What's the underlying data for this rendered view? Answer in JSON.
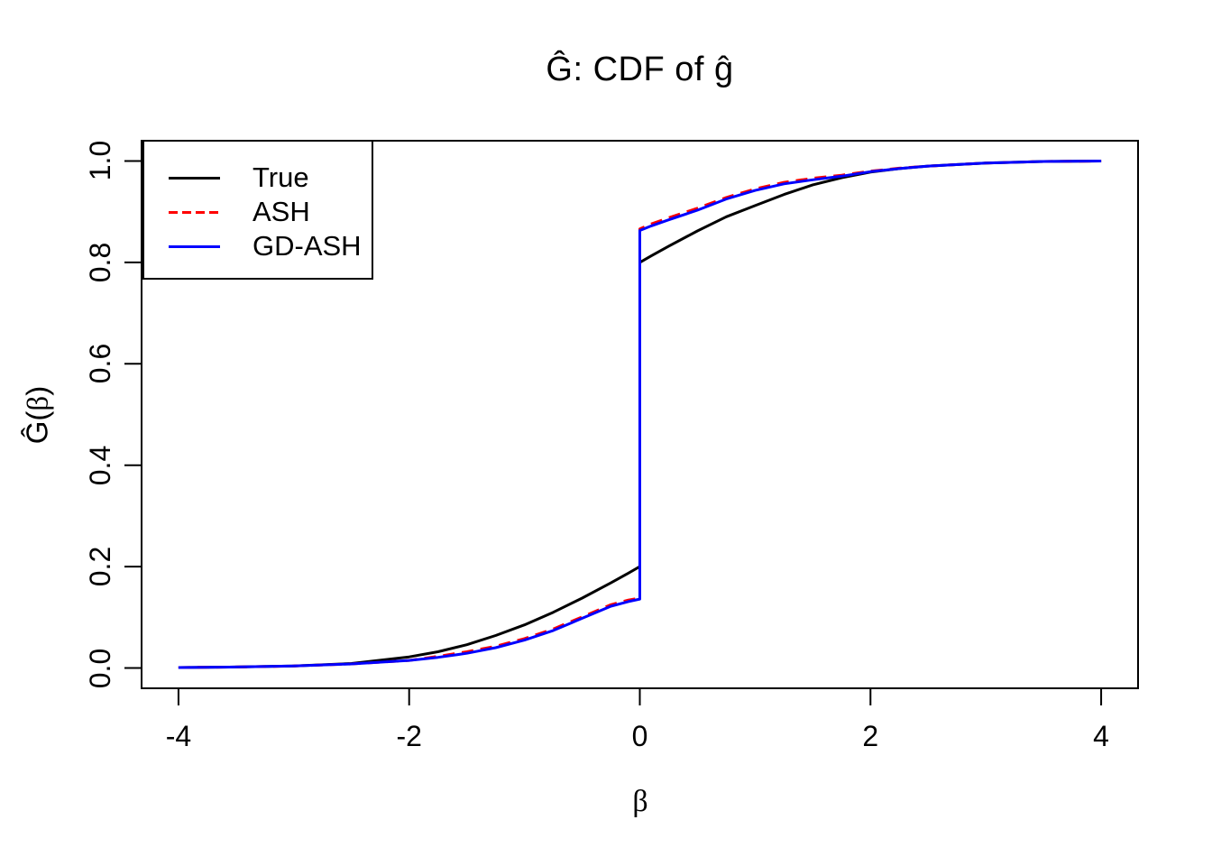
{
  "chart_data": {
    "type": "line",
    "title": "Ĝ: CDF of ĝ",
    "xlabel": "β",
    "ylabel": "Ĝ(β)",
    "xlim": [
      -4,
      4
    ],
    "ylim": [
      0,
      1
    ],
    "grid": false,
    "background": "#ffffff",
    "axis_color": "#000000",
    "x_ticks": {
      "values": [
        -4,
        -2,
        0,
        2,
        4
      ],
      "labels": [
        "-4",
        "-2",
        "0",
        "2",
        "4"
      ]
    },
    "y_ticks": {
      "values": [
        0.0,
        0.2,
        0.4,
        0.6,
        0.8,
        1.0
      ],
      "labels": [
        "0.0",
        "0.2",
        "0.4",
        "0.6",
        "0.8",
        "1.0"
      ]
    },
    "legend": {
      "position": "top-left",
      "entries": [
        {
          "label": "True",
          "color": "#000000",
          "dash": "solid"
        },
        {
          "label": "ASH",
          "color": "#FF0000",
          "dash": "dashed"
        },
        {
          "label": "GD-ASH",
          "color": "#0000FF",
          "dash": "solid"
        }
      ]
    },
    "series": [
      {
        "name": "True",
        "color": "#000000",
        "style": "solid",
        "x": [
          -4,
          -3.5,
          -3,
          -2.5,
          -2,
          -1.75,
          -1.5,
          -1.25,
          -1,
          -0.75,
          -0.5,
          -0.25,
          -0.1,
          0,
          0,
          0.1,
          0.25,
          0.5,
          0.75,
          1,
          1.25,
          1.5,
          1.75,
          2,
          2.25,
          2.5,
          3,
          3.5,
          4
        ],
        "y": [
          0.001,
          0.002,
          0.004,
          0.009,
          0.022,
          0.032,
          0.046,
          0.064,
          0.085,
          0.11,
          0.138,
          0.168,
          0.187,
          0.2,
          0.8,
          0.813,
          0.832,
          0.862,
          0.89,
          0.912,
          0.934,
          0.953,
          0.967,
          0.978,
          0.985,
          0.99,
          0.996,
          0.999,
          1.0
        ]
      },
      {
        "name": "ASH",
        "color": "#FF0000",
        "style": "dashed",
        "x": [
          -4,
          -3.5,
          -3,
          -2.5,
          -2,
          -1.75,
          -1.5,
          -1.25,
          -1,
          -0.75,
          -0.5,
          -0.25,
          -0.1,
          0,
          0,
          0.1,
          0.25,
          0.5,
          0.75,
          1,
          1.25,
          1.5,
          1.75,
          2,
          2.25,
          2.5,
          3,
          3.5,
          4
        ],
        "y": [
          0.001,
          0.002,
          0.004,
          0.008,
          0.015,
          0.023,
          0.032,
          0.043,
          0.058,
          0.077,
          0.101,
          0.125,
          0.134,
          0.138,
          0.866,
          0.876,
          0.888,
          0.907,
          0.928,
          0.945,
          0.958,
          0.966,
          0.972,
          0.98,
          0.986,
          0.99,
          0.996,
          0.999,
          1.0
        ]
      },
      {
        "name": "GD-ASH",
        "color": "#0000FF",
        "style": "solid",
        "x": [
          -4,
          -3.5,
          -3,
          -2.5,
          -2,
          -1.75,
          -1.5,
          -1.25,
          -1,
          -0.75,
          -0.5,
          -0.25,
          -0.1,
          0,
          0,
          0.1,
          0.25,
          0.5,
          0.75,
          1,
          1.25,
          1.5,
          1.75,
          2,
          2.25,
          2.5,
          3,
          3.5,
          4
        ],
        "y": [
          0.001,
          0.002,
          0.004,
          0.008,
          0.015,
          0.021,
          0.029,
          0.04,
          0.055,
          0.074,
          0.098,
          0.122,
          0.131,
          0.136,
          0.863,
          0.872,
          0.884,
          0.903,
          0.925,
          0.942,
          0.955,
          0.963,
          0.97,
          0.979,
          0.985,
          0.99,
          0.996,
          0.999,
          1.0
        ]
      }
    ]
  }
}
